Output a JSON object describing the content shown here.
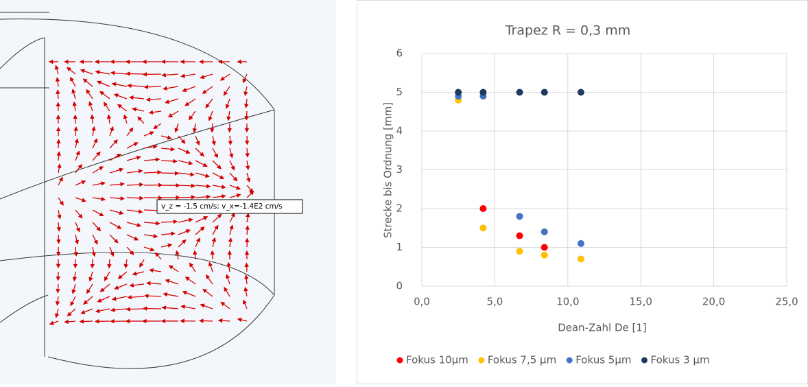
{
  "simulation": {
    "annotation": "v_z = -1.5 cm/s; v_x=-1.4E2 cm/s"
  },
  "chart_data": {
    "type": "scatter",
    "title": "Trapez R = 0,3 mm",
    "x_label": "Dean-Zahl De [1]",
    "y_label": "Strecke bis Ordnung [mm]",
    "xlim": [
      0,
      25
    ],
    "ylim": [
      0,
      6
    ],
    "xticks": [
      {
        "value": 0,
        "label": "0,0"
      },
      {
        "value": 5,
        "label": "5,0"
      },
      {
        "value": 10,
        "label": "10,0"
      },
      {
        "value": 15,
        "label": "15,0"
      },
      {
        "value": 20,
        "label": "20,0"
      },
      {
        "value": 25,
        "label": "25,0"
      }
    ],
    "yticks": [
      0,
      1,
      2,
      3,
      4,
      5,
      6
    ],
    "grid": true,
    "legend": "bottom",
    "series": [
      {
        "name": "Fokus 10µm",
        "color": "#ff0000",
        "x": [
          4.2,
          6.7,
          8.4
        ],
        "values": [
          2.0,
          1.3,
          1.0
        ]
      },
      {
        "name": "Fokus 7,5 µm",
        "color": "#ffc000",
        "x": [
          2.5,
          4.2,
          6.7,
          8.4,
          10.9
        ],
        "values": [
          4.8,
          1.5,
          0.9,
          0.8,
          0.7
        ]
      },
      {
        "name": "Fokus 5µm",
        "color": "#4472c4",
        "x": [
          2.5,
          4.2,
          6.7,
          8.4,
          10.9
        ],
        "values": [
          4.9,
          4.9,
          1.8,
          1.4,
          1.1
        ]
      },
      {
        "name": "Fokus 3 µm",
        "color": "#203864",
        "x": [
          2.5,
          4.2,
          6.7,
          8.4,
          10.9
        ],
        "values": [
          5,
          5,
          5,
          5,
          5
        ]
      }
    ]
  }
}
